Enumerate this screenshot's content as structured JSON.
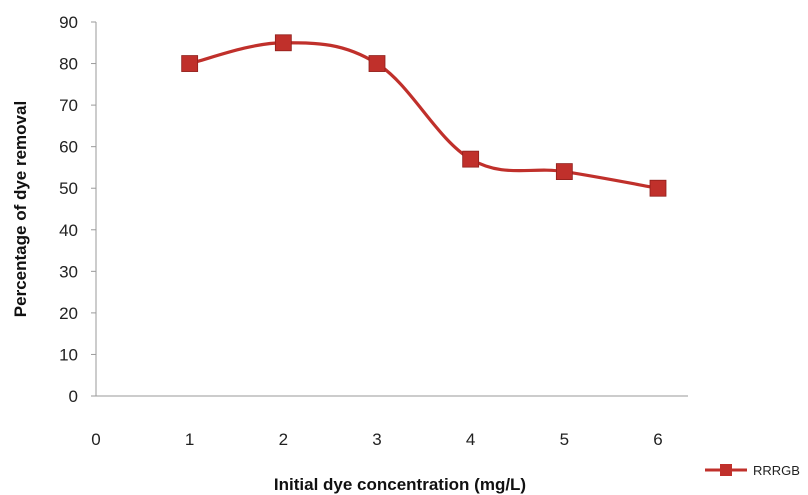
{
  "chart_data": {
    "type": "line",
    "xlabel": "Initial dye concentration (mg/L)",
    "ylabel": "Percentage of dye removal",
    "x_ticks": [
      0,
      1,
      2,
      3,
      4,
      5,
      6
    ],
    "y_ticks": [
      0,
      10,
      20,
      30,
      40,
      50,
      60,
      70,
      80,
      90
    ],
    "xlim": [
      0,
      6
    ],
    "ylim": [
      0,
      90
    ],
    "grid": false,
    "legend_position": "bottom-right",
    "series": [
      {
        "name": "RRRGB",
        "color": "#c0302b",
        "marker": "square",
        "smooth": true,
        "x": [
          1,
          2,
          3,
          4,
          5,
          6
        ],
        "y": [
          80,
          85,
          80,
          57,
          54,
          50
        ]
      }
    ]
  }
}
